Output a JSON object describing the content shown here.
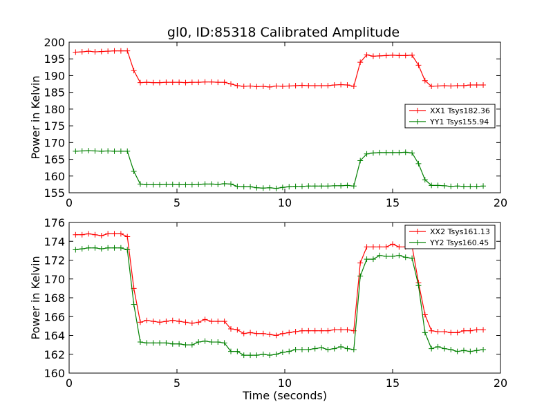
{
  "figure": {
    "title": "gl0, ID:85318 Calibrated Amplitude"
  },
  "chart_data": [
    {
      "type": "line",
      "title": "gl0, ID:85318 Calibrated Amplitude",
      "xlabel": "",
      "ylabel": "Power in Kelvin",
      "xlim": [
        0,
        20
      ],
      "ylim": [
        155,
        200
      ],
      "xticks": [
        "0",
        "5",
        "10",
        "15",
        "20"
      ],
      "yticks": [
        "155",
        "160",
        "165",
        "170",
        "175",
        "180",
        "185",
        "190",
        "195",
        "200"
      ],
      "grid": false,
      "legend_position": "center-right",
      "x": [
        0.3,
        0.6,
        0.9,
        1.2,
        1.5,
        1.8,
        2.1,
        2.4,
        2.7,
        3.0,
        3.3,
        3.6,
        3.9,
        4.2,
        4.5,
        4.8,
        5.1,
        5.4,
        5.7,
        6.0,
        6.3,
        6.6,
        6.9,
        7.2,
        7.5,
        7.8,
        8.1,
        8.4,
        8.7,
        9.0,
        9.3,
        9.6,
        9.9,
        10.2,
        10.5,
        10.8,
        11.1,
        11.4,
        11.7,
        12.0,
        12.3,
        12.6,
        12.9,
        13.2,
        13.5,
        13.8,
        14.1,
        14.4,
        14.7,
        15.0,
        15.3,
        15.6,
        15.9,
        16.2,
        16.5,
        16.8,
        17.1,
        17.4,
        17.7,
        18.0,
        18.3,
        18.6,
        18.9,
        19.2
      ],
      "series": [
        {
          "name": "XX1 Tsys182.36",
          "color": "#ff0000",
          "values": [
            197.0,
            197.1,
            197.3,
            197.1,
            197.2,
            197.3,
            197.4,
            197.4,
            197.4,
            191.5,
            187.9,
            188.0,
            187.9,
            187.9,
            188.0,
            188.0,
            188.0,
            187.9,
            188.0,
            188.0,
            188.1,
            188.1,
            188.0,
            188.0,
            187.5,
            187.0,
            186.8,
            186.9,
            186.7,
            186.8,
            186.6,
            186.9,
            186.8,
            186.9,
            187.0,
            187.1,
            187.0,
            187.0,
            187.0,
            187.0,
            187.2,
            187.3,
            187.2,
            186.8,
            194.0,
            196.2,
            195.8,
            195.9,
            196.0,
            196.1,
            196.0,
            196.0,
            196.1,
            193.1,
            188.5,
            186.8,
            186.9,
            187.0,
            186.9,
            187.0,
            187.0,
            187.2,
            187.2,
            187.2
          ]
        },
        {
          "name": "YY1 Tsys155.94",
          "color": "#008000",
          "values": [
            167.4,
            167.5,
            167.6,
            167.5,
            167.4,
            167.5,
            167.4,
            167.4,
            167.4,
            161.4,
            157.6,
            157.4,
            157.4,
            157.4,
            157.5,
            157.5,
            157.4,
            157.4,
            157.4,
            157.5,
            157.6,
            157.6,
            157.5,
            157.7,
            157.6,
            156.9,
            156.8,
            156.8,
            156.5,
            156.4,
            156.5,
            156.3,
            156.6,
            156.8,
            156.9,
            156.9,
            157.0,
            157.0,
            157.0,
            157.0,
            157.1,
            157.1,
            157.2,
            157.0,
            164.6,
            166.6,
            166.9,
            167.0,
            167.0,
            167.0,
            167.0,
            167.1,
            166.9,
            163.7,
            158.9,
            157.2,
            157.2,
            157.1,
            156.9,
            157.0,
            156.9,
            156.9,
            156.9,
            157.0
          ]
        }
      ]
    },
    {
      "type": "line",
      "title": "",
      "xlabel": "Time (seconds)",
      "ylabel": "Power in Kelvin",
      "xlim": [
        0,
        20
      ],
      "ylim": [
        160,
        176
      ],
      "xticks": [
        "0",
        "5",
        "10",
        "15",
        "20"
      ],
      "yticks": [
        "160",
        "162",
        "164",
        "166",
        "168",
        "170",
        "172",
        "174",
        "176"
      ],
      "grid": false,
      "legend_position": "top-right",
      "x": [
        0.3,
        0.6,
        0.9,
        1.2,
        1.5,
        1.8,
        2.1,
        2.4,
        2.7,
        3.0,
        3.3,
        3.6,
        3.9,
        4.2,
        4.5,
        4.8,
        5.1,
        5.4,
        5.7,
        6.0,
        6.3,
        6.6,
        6.9,
        7.2,
        7.5,
        7.8,
        8.1,
        8.4,
        8.7,
        9.0,
        9.3,
        9.6,
        9.9,
        10.2,
        10.5,
        10.8,
        11.1,
        11.4,
        11.7,
        12.0,
        12.3,
        12.6,
        12.9,
        13.2,
        13.5,
        13.8,
        14.1,
        14.4,
        14.7,
        15.0,
        15.3,
        15.6,
        15.9,
        16.2,
        16.5,
        16.8,
        17.1,
        17.4,
        17.7,
        18.0,
        18.3,
        18.6,
        18.9,
        19.2
      ],
      "series": [
        {
          "name": "XX2 Tsys161.13",
          "color": "#ff0000",
          "values": [
            174.7,
            174.7,
            174.8,
            174.7,
            174.6,
            174.8,
            174.8,
            174.8,
            174.5,
            169.0,
            165.4,
            165.6,
            165.5,
            165.4,
            165.5,
            165.6,
            165.5,
            165.4,
            165.3,
            165.4,
            165.7,
            165.5,
            165.5,
            165.5,
            164.7,
            164.6,
            164.2,
            164.3,
            164.2,
            164.2,
            164.1,
            164.0,
            164.2,
            164.3,
            164.4,
            164.5,
            164.5,
            164.5,
            164.5,
            164.5,
            164.6,
            164.6,
            164.6,
            164.5,
            171.7,
            173.4,
            173.4,
            173.4,
            173.4,
            173.7,
            173.4,
            173.4,
            173.5,
            169.6,
            166.2,
            164.5,
            164.4,
            164.4,
            164.3,
            164.3,
            164.5,
            164.5,
            164.6,
            164.6
          ]
        },
        {
          "name": "YY2 Tsys160.45",
          "color": "#008000",
          "values": [
            173.1,
            173.2,
            173.3,
            173.3,
            173.2,
            173.3,
            173.3,
            173.3,
            173.1,
            167.3,
            163.3,
            163.2,
            163.2,
            163.2,
            163.2,
            163.1,
            163.1,
            163.0,
            163.0,
            163.3,
            163.4,
            163.3,
            163.3,
            163.2,
            162.3,
            162.3,
            161.9,
            161.9,
            161.9,
            162.0,
            161.9,
            162.0,
            162.2,
            162.3,
            162.5,
            162.5,
            162.5,
            162.6,
            162.7,
            162.5,
            162.6,
            162.8,
            162.6,
            162.5,
            170.3,
            172.1,
            172.1,
            172.5,
            172.4,
            172.4,
            172.5,
            172.3,
            172.2,
            169.3,
            164.3,
            162.6,
            162.8,
            162.6,
            162.5,
            162.3,
            162.4,
            162.3,
            162.4,
            162.5
          ]
        }
      ]
    }
  ]
}
